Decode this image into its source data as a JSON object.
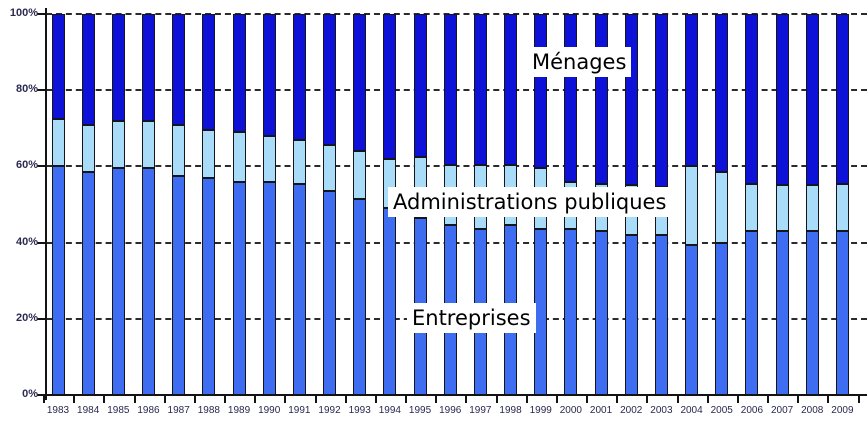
{
  "chart_data": {
    "type": "bar",
    "stacked": true,
    "stack_unit": "percent",
    "title": "",
    "categories": [
      "1983",
      "1984",
      "1985",
      "1986",
      "1987",
      "1988",
      "1989",
      "1990",
      "1991",
      "1992",
      "1993",
      "1994",
      "1995",
      "1996",
      "1997",
      "1998",
      "1999",
      "2000",
      "2001",
      "2002",
      "2003",
      "2004",
      "2005",
      "2006",
      "2007",
      "2008",
      "2009"
    ],
    "series": [
      {
        "name": "Entreprises",
        "color": "#3f6df2",
        "values": [
          60,
          58.5,
          59.5,
          59.5,
          57.5,
          57,
          56,
          56,
          55.5,
          53.5,
          51.5,
          49,
          46.5,
          44.5,
          43.5,
          44.5,
          43.5,
          43.5,
          43,
          42,
          42,
          39.5,
          40,
          43,
          43,
          43,
          43
        ]
      },
      {
        "name": "Administrations publiques",
        "color": "#a9dcf9",
        "values": [
          12.5,
          12.5,
          12.5,
          12.5,
          13.5,
          12.5,
          13,
          12,
          11.5,
          12,
          12.5,
          13,
          16,
          16,
          17,
          16,
          16,
          12.5,
          12.5,
          13,
          12.5,
          20.5,
          18.5,
          12.5,
          12,
          12,
          12.5
        ]
      },
      {
        "name": "Ménages",
        "color": "#0e11d8",
        "values": [
          27.5,
          29,
          28,
          28,
          29,
          30.5,
          31,
          32,
          33,
          34.5,
          36,
          38,
          37.5,
          39.5,
          39.5,
          39.5,
          40.5,
          44,
          44.5,
          45,
          45.5,
          40,
          41.5,
          44.5,
          45,
          45,
          44.5
        ]
      }
    ],
    "y_axis": {
      "min": 0,
      "max": 100,
      "tick_step": 20,
      "ticks": [
        "0%",
        "20%",
        "40%",
        "60%",
        "80%",
        "100%"
      ]
    },
    "x_axis": {
      "ticks_between_categories": true
    },
    "grid": {
      "horizontal": "dashed",
      "interval": 20
    },
    "legend_position": "inline-annotations",
    "annotations": [
      {
        "text": "Ménages"
      },
      {
        "text": "Administrations publiques"
      },
      {
        "text": "Entreprises"
      }
    ]
  }
}
